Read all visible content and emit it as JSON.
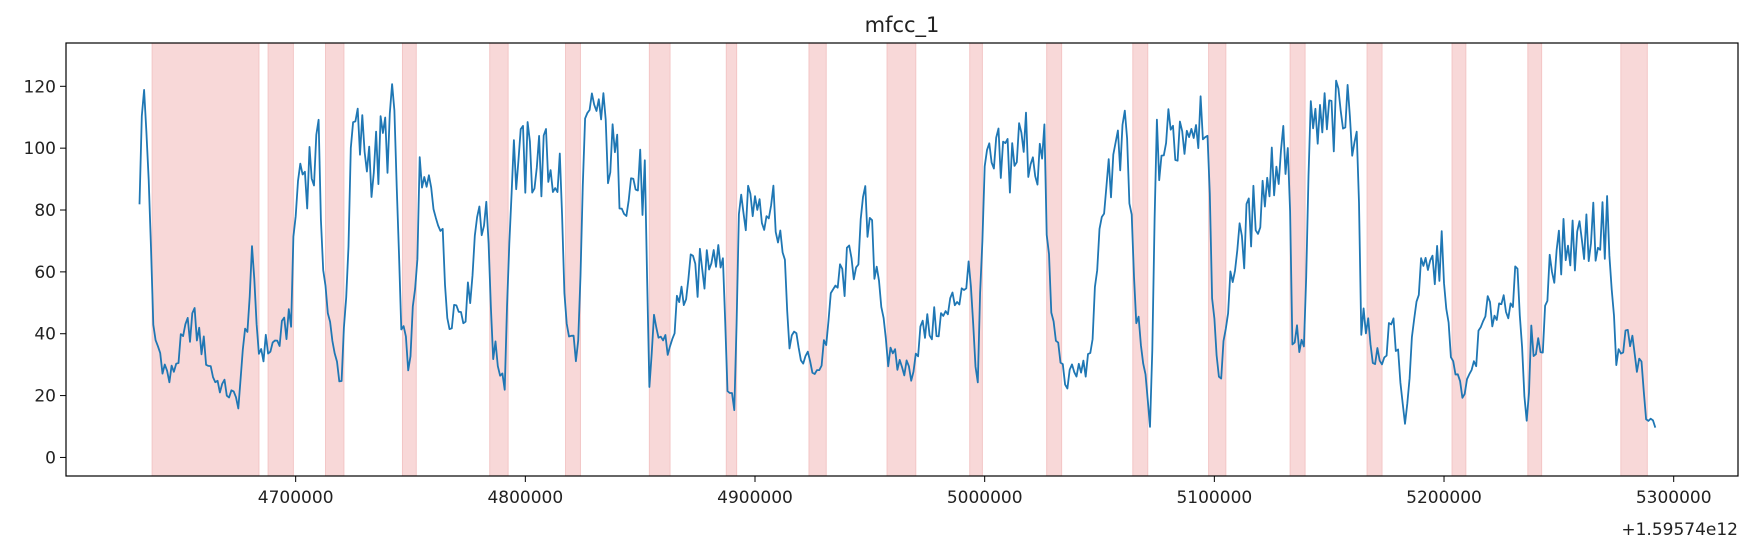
{
  "chart_data": {
    "type": "line",
    "title": "mfcc_1",
    "xlabel": "",
    "ylabel": "",
    "x_offset_label": "+1.59574e12",
    "xlim": [
      4600000,
      5328000
    ],
    "ylim": [
      -6,
      134
    ],
    "x_ticks": [
      4700000,
      4800000,
      4900000,
      5000000,
      5100000,
      5200000,
      5300000
    ],
    "x_tick_labels": [
      "4700000",
      "4800000",
      "4900000",
      "5000000",
      "5100000",
      "5200000",
      "5300000"
    ],
    "y_ticks": [
      0,
      20,
      40,
      60,
      80,
      100,
      120
    ],
    "y_tick_labels": [
      "0",
      "20",
      "40",
      "60",
      "80",
      "100",
      "120"
    ],
    "grid": false,
    "line_color": "#1f77b4",
    "span_color": "#f8d8d8",
    "shaded_spans": [
      [
        4637500,
        4684000
      ],
      [
        4688000,
        4699000
      ],
      [
        4713000,
        4721000
      ],
      [
        4746500,
        4752500
      ],
      [
        4784500,
        4792500
      ],
      [
        4817500,
        4824000
      ],
      [
        4854000,
        4863000
      ],
      [
        4887500,
        4892000
      ],
      [
        4923500,
        4931000
      ],
      [
        4957500,
        4970000
      ],
      [
        4993500,
        4999000
      ],
      [
        5027000,
        5033500
      ],
      [
        5064500,
        5071000
      ],
      [
        5097500,
        5105000
      ],
      [
        5133000,
        5139500
      ],
      [
        5166500,
        5173000
      ],
      [
        5203500,
        5209500
      ],
      [
        5236500,
        5242500
      ],
      [
        5277000,
        5288500
      ]
    ],
    "series": [
      {
        "x_start": 4632000,
        "x_step": 1000,
        "keyframes": [
          [
            4632000,
            90
          ],
          [
            4634000,
            117
          ],
          [
            4636000,
            96
          ],
          [
            4637000,
            62
          ],
          [
            4638000,
            40
          ],
          [
            4645000,
            25
          ],
          [
            4655000,
            45
          ],
          [
            4665000,
            25
          ],
          [
            4675000,
            18
          ],
          [
            4681000,
            60
          ],
          [
            4684000,
            35
          ],
          [
            4690000,
            36
          ],
          [
            4695000,
            40
          ],
          [
            4698000,
            48
          ],
          [
            4701000,
            92
          ],
          [
            4710000,
            96
          ],
          [
            4713000,
            55
          ],
          [
            4716000,
            35
          ],
          [
            4720000,
            25
          ],
          [
            4725000,
            105
          ],
          [
            4735000,
            95
          ],
          [
            4743000,
            110
          ],
          [
            4746000,
            40
          ],
          [
            4750000,
            30
          ],
          [
            4754000,
            85
          ],
          [
            4762000,
            85
          ],
          [
            4766000,
            48
          ],
          [
            4775000,
            50
          ],
          [
            4780000,
            85
          ],
          [
            4784000,
            70
          ],
          [
            4786000,
            35
          ],
          [
            4791000,
            25
          ],
          [
            4794000,
            95
          ],
          [
            4805000,
            96
          ],
          [
            4815000,
            92
          ],
          [
            4818000,
            40
          ],
          [
            4823000,
            35
          ],
          [
            4826000,
            100
          ],
          [
            4831000,
            115
          ],
          [
            4836000,
            100
          ],
          [
            4842000,
            90
          ],
          [
            4852000,
            88
          ],
          [
            4854000,
            20
          ],
          [
            4856000,
            42
          ],
          [
            4863000,
            35
          ],
          [
            4866000,
            48
          ],
          [
            4872000,
            58
          ],
          [
            4878000,
            60
          ],
          [
            4882000,
            72
          ],
          [
            4886000,
            65
          ],
          [
            4888000,
            25
          ],
          [
            4891000,
            15
          ],
          [
            4893000,
            80
          ],
          [
            4902000,
            85
          ],
          [
            4910000,
            80
          ],
          [
            4915000,
            40
          ],
          [
            4921000,
            32
          ],
          [
            4928000,
            28
          ],
          [
            4935000,
            55
          ],
          [
            4942000,
            62
          ],
          [
            4948000,
            78
          ],
          [
            4955000,
            55
          ],
          [
            4958000,
            32
          ],
          [
            4968000,
            28
          ],
          [
            4972000,
            40
          ],
          [
            4983000,
            45
          ],
          [
            4993000,
            60
          ],
          [
            4997000,
            25
          ],
          [
            5000000,
            90
          ],
          [
            5008000,
            95
          ],
          [
            5018000,
            102
          ],
          [
            5026000,
            95
          ],
          [
            5029000,
            45
          ],
          [
            5035000,
            25
          ],
          [
            5045000,
            30
          ],
          [
            5049000,
            55
          ],
          [
            5052000,
            90
          ],
          [
            5062000,
            100
          ],
          [
            5066000,
            45
          ],
          [
            5070000,
            25
          ],
          [
            5072000,
            10
          ],
          [
            5075000,
            98
          ],
          [
            5090000,
            110
          ],
          [
            5097000,
            115
          ],
          [
            5099000,
            45
          ],
          [
            5103000,
            25
          ],
          [
            5107000,
            60
          ],
          [
            5118000,
            80
          ],
          [
            5132000,
            105
          ],
          [
            5134000,
            40
          ],
          [
            5139000,
            35
          ],
          [
            5142000,
            105
          ],
          [
            5158000,
            110
          ],
          [
            5162000,
            112
          ],
          [
            5164000,
            45
          ],
          [
            5172000,
            30
          ],
          [
            5178000,
            45
          ],
          [
            5183000,
            10
          ],
          [
            5188000,
            55
          ],
          [
            5200000,
            65
          ],
          [
            5203000,
            30
          ],
          [
            5209000,
            20
          ],
          [
            5218000,
            45
          ],
          [
            5232000,
            55
          ],
          [
            5236000,
            10
          ],
          [
            5238000,
            38
          ],
          [
            5243000,
            35
          ],
          [
            5246000,
            65
          ],
          [
            5258000,
            70
          ],
          [
            5272000,
            75
          ],
          [
            5275000,
            30
          ],
          [
            5280000,
            40
          ],
          [
            5286000,
            28
          ],
          [
            5288000,
            12
          ],
          [
            5292000,
            11
          ]
        ]
      }
    ]
  }
}
